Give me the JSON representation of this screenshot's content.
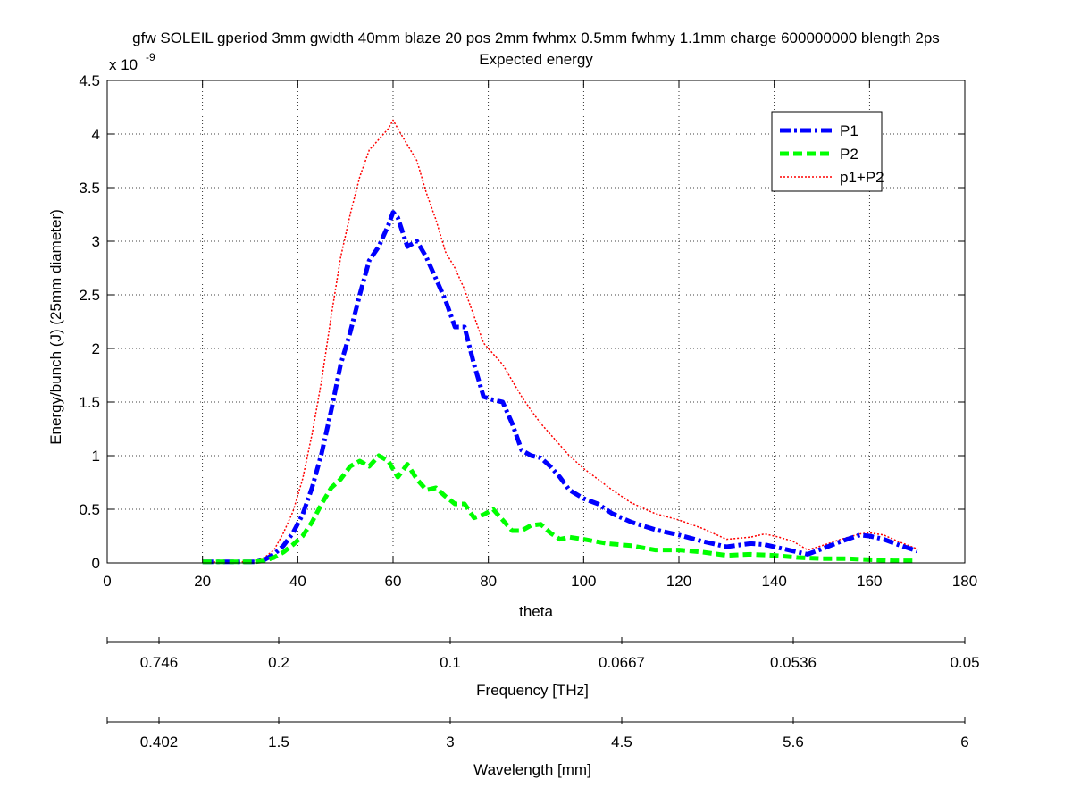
{
  "chart_data": {
    "type": "line",
    "title": "gfw SOLEIL gperiod 3mm gwidth 40mm blaze 20 pos 2mm fwhmx 0.5mm fwhmy 1.1mm charge 600000000 blength 2ps",
    "subtitle": "Expected energy",
    "xlabel": "theta",
    "ylabel": "Energy/bunch (J) (25mm diameter)",
    "y_multiplier_base": "x 10",
    "y_multiplier_exp": "-9",
    "xlim": [
      0,
      180
    ],
    "ylim": [
      0,
      4.5
    ],
    "x_ticks": [
      0,
      20,
      40,
      60,
      80,
      100,
      120,
      140,
      160,
      180
    ],
    "y_ticks": [
      0,
      0.5,
      1,
      1.5,
      2,
      2.5,
      3,
      3.5,
      4,
      4.5
    ],
    "y_tick_labels": [
      "0",
      "0.5",
      "1",
      "1.5",
      "2",
      "2.5",
      "3",
      "3.5",
      "4",
      "4.5"
    ],
    "grid": true,
    "legend_position": "top-right",
    "series": [
      {
        "name": "P1",
        "color": "#0000ff",
        "style": "dash-dot",
        "x": [
          20,
          24,
          28,
          31,
          33,
          35,
          37,
          39,
          41,
          43,
          45,
          47,
          49,
          51,
          53,
          55,
          57,
          59,
          60,
          61,
          63,
          65,
          67,
          69,
          71,
          73,
          75,
          77,
          79,
          81,
          83,
          85,
          87,
          89,
          91,
          93,
          95,
          97,
          100,
          103,
          106,
          110,
          115,
          120,
          125,
          130,
          135,
          138,
          141,
          144,
          147,
          150,
          154,
          158,
          160,
          163,
          166,
          170
        ],
        "y": [
          0.01,
          0.01,
          0.01,
          0.01,
          0.03,
          0.08,
          0.16,
          0.28,
          0.45,
          0.7,
          1.02,
          1.42,
          1.85,
          2.15,
          2.5,
          2.82,
          2.95,
          3.15,
          3.27,
          3.22,
          2.95,
          3.0,
          2.85,
          2.65,
          2.45,
          2.2,
          2.2,
          1.85,
          1.55,
          1.52,
          1.5,
          1.3,
          1.05,
          1.0,
          0.98,
          0.9,
          0.8,
          0.68,
          0.6,
          0.55,
          0.46,
          0.38,
          0.31,
          0.26,
          0.2,
          0.15,
          0.18,
          0.17,
          0.14,
          0.11,
          0.08,
          0.13,
          0.2,
          0.26,
          0.25,
          0.22,
          0.17,
          0.11
        ]
      },
      {
        "name": "P2",
        "color": "#00ff00",
        "style": "dashed",
        "x": [
          20,
          24,
          28,
          31,
          33,
          35,
          37,
          39,
          41,
          43,
          45,
          47,
          49,
          51,
          53,
          55,
          57,
          59,
          61,
          63,
          65,
          67,
          69,
          71,
          73,
          75,
          77,
          79,
          81,
          83,
          85,
          87,
          89,
          91,
          93,
          95,
          97,
          100,
          105,
          110,
          115,
          120,
          125,
          130,
          135,
          140,
          145,
          150,
          155,
          160,
          165,
          170
        ],
        "y": [
          0.01,
          0.01,
          0.01,
          0.01,
          0.02,
          0.05,
          0.1,
          0.17,
          0.25,
          0.38,
          0.55,
          0.7,
          0.78,
          0.9,
          0.95,
          0.9,
          1.0,
          0.95,
          0.8,
          0.92,
          0.78,
          0.68,
          0.7,
          0.62,
          0.55,
          0.55,
          0.42,
          0.45,
          0.5,
          0.4,
          0.3,
          0.3,
          0.35,
          0.36,
          0.28,
          0.22,
          0.24,
          0.22,
          0.18,
          0.16,
          0.12,
          0.12,
          0.1,
          0.07,
          0.08,
          0.07,
          0.05,
          0.04,
          0.04,
          0.03,
          0.02,
          0.02
        ]
      },
      {
        "name": "p1+P2",
        "color": "#ff0000",
        "style": "dotted",
        "x": [
          20,
          24,
          28,
          31,
          33,
          35,
          37,
          39,
          41,
          43,
          45,
          47,
          49,
          51,
          53,
          55,
          57,
          59,
          60,
          61,
          63,
          65,
          67,
          69,
          71,
          73,
          75,
          77,
          79,
          81,
          83,
          85,
          87,
          89,
          91,
          93,
          95,
          97,
          100,
          103,
          106,
          110,
          115,
          120,
          125,
          130,
          135,
          138,
          141,
          144,
          147,
          150,
          154,
          158,
          160,
          163,
          166,
          170
        ],
        "y": [
          0.01,
          0.01,
          0.01,
          0.02,
          0.05,
          0.12,
          0.28,
          0.48,
          0.78,
          1.2,
          1.7,
          2.3,
          2.85,
          3.25,
          3.6,
          3.85,
          3.95,
          4.05,
          4.13,
          4.05,
          3.9,
          3.75,
          3.45,
          3.2,
          2.9,
          2.75,
          2.55,
          2.3,
          2.05,
          1.95,
          1.85,
          1.7,
          1.55,
          1.42,
          1.3,
          1.2,
          1.1,
          1.0,
          0.88,
          0.78,
          0.68,
          0.56,
          0.46,
          0.4,
          0.32,
          0.22,
          0.24,
          0.27,
          0.24,
          0.2,
          0.12,
          0.16,
          0.22,
          0.27,
          0.28,
          0.26,
          0.2,
          0.13
        ]
      }
    ],
    "frequency_axis": {
      "label": "Frequency [THz]",
      "tick_labels": [
        "0.746",
        "0.2",
        "0.1",
        "0.0667",
        "0.0536",
        "0.05"
      ]
    },
    "wavelength_axis": {
      "label": "Wavelength [mm]",
      "tick_labels": [
        "0.402",
        "1.5",
        "3",
        "4.5",
        "5.6",
        "6"
      ]
    }
  }
}
